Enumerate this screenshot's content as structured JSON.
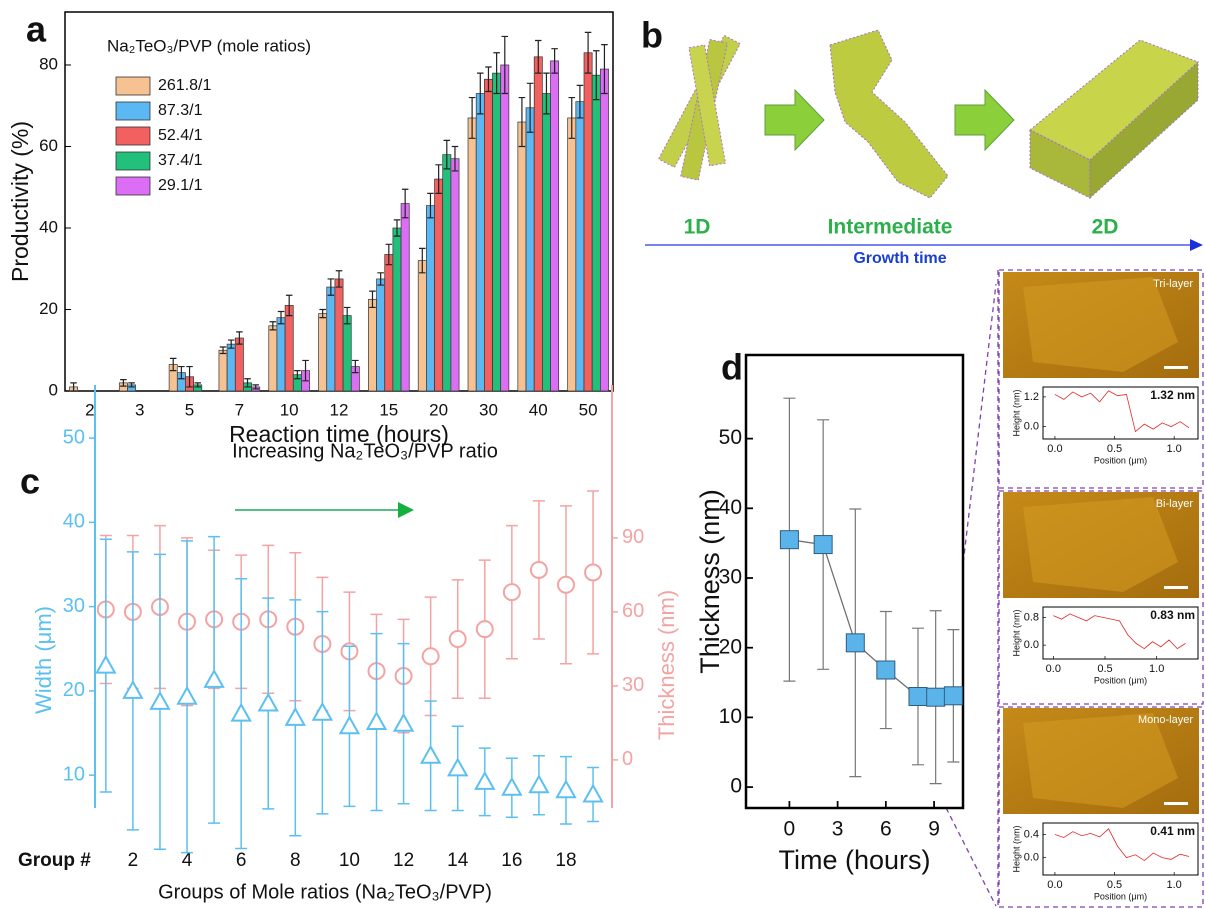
{
  "panel_labels": [
    "a",
    "b",
    "c",
    "d"
  ],
  "schematic": {
    "stages": [
      "1D",
      "Intermediate",
      "2D"
    ],
    "axis_label": "Growth time"
  },
  "chart_data": [
    {
      "type": "bar",
      "xlabel": "Reaction time (hours)",
      "ylabel": "Productivity (%)",
      "legend_title": "Na₂TeO₃/PVP (mole ratios)",
      "categories": [
        "2",
        "3",
        "5",
        "7",
        "10",
        "12",
        "15",
        "20",
        "30",
        "40",
        "50"
      ],
      "ylim": [
        0,
        93
      ],
      "yticks": [
        0,
        20,
        40,
        60,
        80
      ],
      "series": [
        {
          "name": "261.8/1",
          "color": "#f7c292",
          "values": [
            1,
            2,
            6.5,
            10,
            16,
            19,
            22.5,
            32,
            67,
            66,
            67
          ],
          "errors": [
            1,
            0.8,
            1.5,
            0.8,
            1,
            1,
            2,
            3,
            5,
            6,
            5
          ]
        },
        {
          "name": "87.3/1",
          "color": "#5cb8f2",
          "values": [
            null,
            1.5,
            4.5,
            11.5,
            18,
            25.5,
            27.5,
            45.5,
            73,
            69.5,
            71
          ],
          "errors": [
            null,
            0.5,
            1.5,
            1,
            1.5,
            2,
            1.5,
            3,
            5,
            6,
            4
          ]
        },
        {
          "name": "52.4/1",
          "color": "#f2605f",
          "values": [
            null,
            null,
            3.5,
            13,
            21,
            27.5,
            33.5,
            52,
            76.5,
            82,
            83
          ],
          "errors": [
            null,
            null,
            2.5,
            1.5,
            2.5,
            2,
            2.5,
            3.5,
            3,
            4,
            5
          ]
        },
        {
          "name": "37.4/1",
          "color": "#22c07a",
          "values": [
            null,
            null,
            1.5,
            2,
            4,
            18.5,
            40,
            58,
            78,
            73,
            77.5
          ],
          "errors": [
            null,
            null,
            0.5,
            1,
            1,
            2,
            2,
            3.5,
            5,
            5,
            6
          ]
        },
        {
          "name": "29.1/1",
          "color": "#dc6df5",
          "values": [
            null,
            null,
            null,
            1,
            5,
            6,
            46,
            57,
            80,
            81,
            79
          ],
          "errors": [
            null,
            null,
            null,
            0.5,
            2.5,
            1.5,
            3.5,
            3,
            7,
            3,
            6
          ]
        }
      ]
    },
    {
      "type": "scatter",
      "xlabel": "Groups of Mole ratios (Na₂TeO₃/PVP)",
      "x_prefix_label": "Group #",
      "ylabel": "Width (μm)",
      "y2label": "Thickness (nm)",
      "annotation": "Increasing Na₂TeO₃/PVP ratio",
      "x": [
        1,
        2,
        3,
        4,
        5,
        6,
        7,
        8,
        9,
        10,
        11,
        12,
        13,
        14,
        15,
        16,
        17,
        18,
        19
      ],
      "xlim": [
        0.6,
        19.7
      ],
      "xticks": [
        2,
        4,
        6,
        8,
        10,
        12,
        14,
        16,
        18
      ],
      "ylim": [
        6.1,
        56.3
      ],
      "yticks": [
        10,
        20,
        30,
        40,
        50
      ],
      "y2lim": [
        -19.5,
        152
      ],
      "y2ticks": [
        0,
        30,
        60,
        90
      ],
      "series": [
        {
          "color": "#5bc0f0",
          "marker": "triangle",
          "values": [
            23,
            20,
            18.7,
            19.3,
            21.3,
            17.3,
            18.5,
            16.8,
            17.4,
            15.8,
            16.3,
            16.1,
            12.3,
            10.8,
            9.2,
            8.5,
            8.8,
            8.2,
            7.7
          ],
          "errors": [
            15,
            16.5,
            17.5,
            18.5,
            17,
            16,
            12.5,
            14,
            12,
            9.5,
            10.5,
            9.5,
            6.5,
            5,
            4,
            3.5,
            3.5,
            4,
            3.2
          ]
        },
        {
          "color": "#f4a3a3",
          "marker": "circle",
          "axis": "y2",
          "values": [
            61,
            60,
            62,
            56,
            57,
            56,
            57,
            54,
            47,
            44,
            36,
            34,
            42,
            49,
            53,
            68,
            77,
            71,
            76
          ],
          "errors": [
            30,
            31,
            33,
            34,
            28,
            27,
            30,
            30,
            27,
            24,
            23,
            23,
            24,
            24,
            28,
            27,
            28,
            32,
            33
          ]
        }
      ]
    },
    {
      "type": "line",
      "xlabel": "Time (hours)",
      "ylabel": "Thickness (nm)",
      "x": [
        0,
        2.1,
        4.1,
        6,
        8,
        9.1,
        10.2
      ],
      "values": [
        35.5,
        34.8,
        20.7,
        16.8,
        13,
        12.9,
        13.1
      ],
      "errors": [
        20.3,
        17.9,
        19.2,
        8.4,
        9.8,
        12.4,
        9.5
      ],
      "color": "#5ab4ea",
      "line_color": "#707070",
      "marker": "square",
      "xlim": [
        -2.7,
        10.8
      ],
      "xticks": [
        0,
        3,
        6,
        9
      ],
      "ylim": [
        -3,
        62
      ],
      "yticks": [
        0,
        10,
        20,
        30,
        40,
        50
      ]
    },
    {
      "type": "line",
      "title": "Tri-layer",
      "annotation": "1.32 nm",
      "xlabel": "Position (μm)",
      "ylabel": "Height (nm)",
      "x": [
        0,
        0.075,
        0.15,
        0.225,
        0.3,
        0.375,
        0.45,
        0.525,
        0.6,
        0.675,
        0.75,
        0.825,
        0.9,
        0.975,
        1.05,
        1.125
      ],
      "values": [
        1.3,
        1.1,
        1.4,
        1.2,
        1.35,
        1.0,
        1.45,
        1.25,
        1.3,
        -0.2,
        0.1,
        -0.1,
        0.15,
        0.0,
        0.2,
        -0.05
      ],
      "color": "#e02a2a",
      "xlim": [
        -0.1,
        1.2
      ],
      "xticks": [
        {
          "value": 0,
          "label": "0.0"
        },
        0.5,
        {
          "value": 1,
          "label": "1.0"
        }
      ],
      "ylim": [
        -0.5,
        1.6
      ],
      "yticks": [
        {
          "value": 0,
          "label": "0.0"
        },
        1.2
      ]
    },
    {
      "type": "line",
      "title": "Bi-layer",
      "annotation": "0.83 nm",
      "xlabel": "Position (μm)",
      "ylabel": "Height (nm)",
      "x": [
        0,
        0.08,
        0.16,
        0.24,
        0.32,
        0.4,
        0.48,
        0.56,
        0.64,
        0.72,
        0.8,
        0.88,
        0.96,
        1.04,
        1.12,
        1.2,
        1.28
      ],
      "values": [
        0.85,
        0.75,
        0.9,
        0.8,
        0.7,
        0.85,
        0.8,
        0.75,
        0.7,
        0.3,
        0.05,
        -0.1,
        0.1,
        -0.05,
        0.15,
        -0.1,
        0.05
      ],
      "color": "#e02a2a",
      "xlim": [
        -0.1,
        1.4
      ],
      "xticks": [
        {
          "value": 0,
          "label": "0.0"
        },
        0.5,
        {
          "value": 1,
          "label": "1.0"
        }
      ],
      "ylim": [
        -0.4,
        1.1
      ],
      "yticks": [
        {
          "value": 0,
          "label": "0.0"
        },
        0.8
      ]
    },
    {
      "type": "line",
      "title": "Mono-layer",
      "annotation": "0.41 nm",
      "xlabel": "Position (μm)",
      "ylabel": "Height (nm)",
      "x": [
        0,
        0.075,
        0.15,
        0.225,
        0.3,
        0.375,
        0.45,
        0.525,
        0.6,
        0.675,
        0.75,
        0.825,
        0.9,
        0.975,
        1.05,
        1.125
      ],
      "values": [
        0.4,
        0.35,
        0.45,
        0.38,
        0.42,
        0.36,
        0.5,
        0.2,
        0.0,
        0.05,
        -0.05,
        0.08,
        0.0,
        -0.03,
        0.06,
        0.02
      ],
      "color": "#e02a2a",
      "xlim": [
        -0.1,
        1.2
      ],
      "xticks": [
        {
          "value": 0,
          "label": "0.0"
        },
        0.5,
        {
          "value": 1,
          "label": "1.0"
        }
      ],
      "ylim": [
        -0.3,
        0.6
      ],
      "yticks": [
        {
          "value": 0,
          "label": "0.0"
        },
        0.4
      ]
    }
  ]
}
